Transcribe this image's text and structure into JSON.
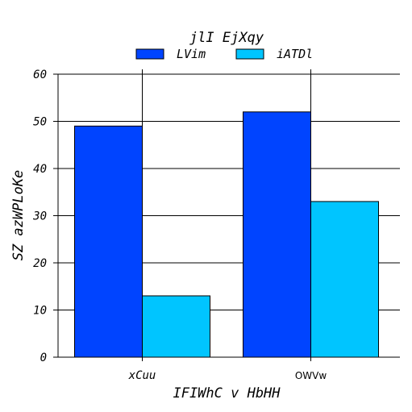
{
  "chart_data": {
    "type": "bar",
    "title": "jlI EjXqy",
    "xlabel": "IFIWhC v HbHH",
    "ylabel": "SZ azWPLoKe",
    "categories": [
      "xCuu",
      "OWVw"
    ],
    "series": [
      {
        "name": "LVim",
        "values": [
          49,
          52
        ],
        "color": "#0044ff"
      },
      {
        "name": "iATDl",
        "values": [
          13,
          33
        ],
        "color": "#00c5ff"
      }
    ],
    "ylim": [
      0,
      60
    ],
    "yticks": [
      0,
      10,
      20,
      30,
      40,
      50,
      60
    ],
    "grid": true,
    "legend": "top-center"
  }
}
